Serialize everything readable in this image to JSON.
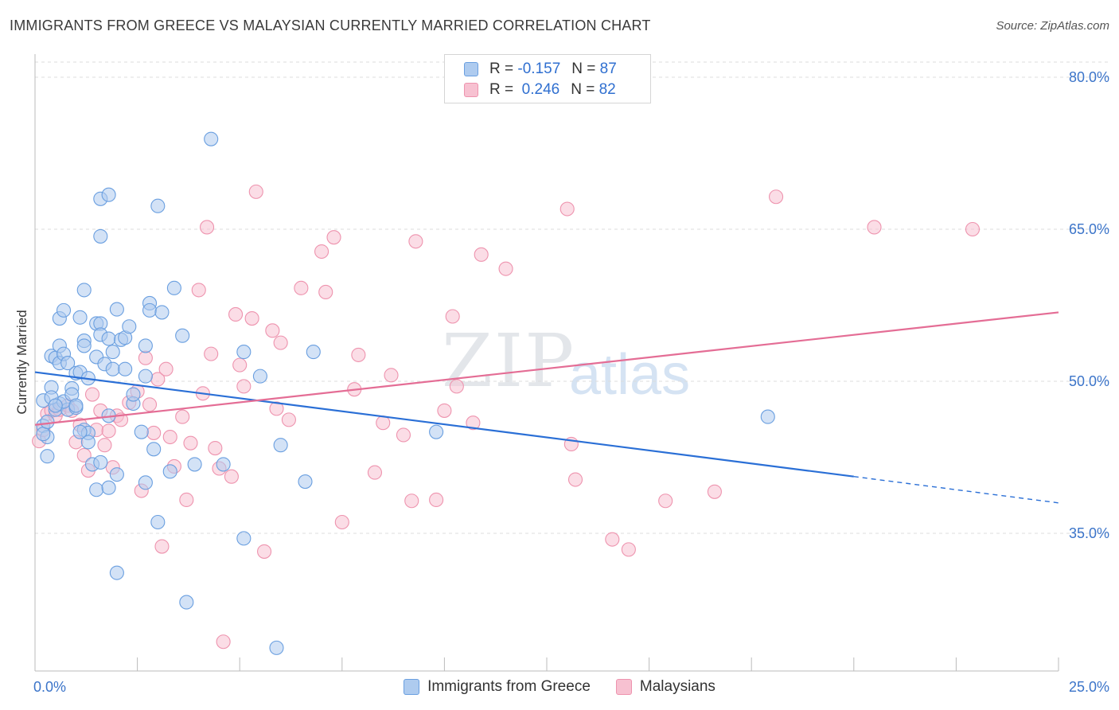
{
  "title": "IMMIGRANTS FROM GREECE VS MALAYSIAN CURRENTLY MARRIED CORRELATION CHART",
  "source": "Source: ZipAtlas.com",
  "watermark": {
    "zip": "ZIP",
    "atlas": "atlas"
  },
  "legend": {
    "rows": [
      {
        "r_label": "R =",
        "r_value": "-0.157",
        "n_label": "N =",
        "n_value": "87"
      },
      {
        "r_label": "R =",
        "r_value": "0.246",
        "n_label": "N =",
        "n_value": "82"
      }
    ]
  },
  "bottom_legend": {
    "greece": "Immigrants from Greece",
    "malaysians": "Malaysians"
  },
  "y_axis": {
    "label": "Currently Married",
    "ticks": [
      "80.0%",
      "65.0%",
      "50.0%",
      "35.0%"
    ]
  },
  "x_axis": {
    "ticks": [
      "0.0%",
      "25.0%"
    ]
  },
  "colors": {
    "greece_fill": "#aecbef",
    "greece_stroke": "#6a9fe0",
    "greece_line": "#2a6fd6",
    "malay_fill": "#f7c1d1",
    "malay_stroke": "#ee93ae",
    "malay_line": "#e46d95",
    "grid": "#dcdcdc",
    "tick_text": "#3b74c9"
  },
  "chart_data": {
    "type": "scatter",
    "xlim": [
      0,
      25
    ],
    "ylim": [
      22,
      83
    ],
    "grid": true,
    "legend_placement": "top-center",
    "series": [
      {
        "name": "Immigrants from Greece",
        "trend": {
          "x0": 0,
          "y0": 50.9,
          "x1": 20,
          "y1": 40.6,
          "dashed_to_x": 25,
          "dashed_to_y": 38.0
        },
        "points": [
          [
            0.2,
            45.6
          ],
          [
            0.3,
            44.5
          ],
          [
            0.2,
            48.1
          ],
          [
            0.4,
            49.4
          ],
          [
            0.3,
            42.6
          ],
          [
            0.5,
            47.2
          ],
          [
            0.4,
            52.5
          ],
          [
            0.5,
            52.3
          ],
          [
            0.6,
            51.8
          ],
          [
            0.6,
            53.5
          ],
          [
            0.7,
            52.7
          ],
          [
            0.6,
            47.8
          ],
          [
            0.8,
            47.2
          ],
          [
            0.7,
            48.0
          ],
          [
            0.9,
            49.3
          ],
          [
            0.8,
            51.8
          ],
          [
            0.9,
            48.7
          ],
          [
            1.0,
            50.8
          ],
          [
            1.0,
            47.4
          ],
          [
            1.1,
            50.9
          ],
          [
            1.2,
            54.0
          ],
          [
            1.2,
            53.5
          ],
          [
            1.1,
            56.3
          ],
          [
            0.6,
            56.2
          ],
          [
            0.7,
            57.0
          ],
          [
            1.2,
            45.2
          ],
          [
            1.3,
            44.9
          ],
          [
            1.3,
            44.0
          ],
          [
            1.4,
            41.8
          ],
          [
            1.2,
            59.0
          ],
          [
            1.3,
            50.3
          ],
          [
            1.5,
            55.7
          ],
          [
            1.5,
            52.4
          ],
          [
            1.6,
            55.7
          ],
          [
            1.6,
            54.6
          ],
          [
            1.6,
            42.0
          ],
          [
            1.5,
            39.3
          ],
          [
            1.7,
            51.7
          ],
          [
            1.8,
            54.2
          ],
          [
            1.8,
            46.6
          ],
          [
            1.8,
            39.5
          ],
          [
            1.9,
            52.9
          ],
          [
            1.9,
            51.2
          ],
          [
            2.0,
            57.1
          ],
          [
            2.0,
            40.8
          ],
          [
            2.1,
            54.1
          ],
          [
            2.2,
            54.3
          ],
          [
            2.2,
            51.2
          ],
          [
            2.3,
            55.4
          ],
          [
            2.4,
            47.8
          ],
          [
            2.4,
            48.7
          ],
          [
            2.6,
            45.0
          ],
          [
            2.7,
            53.5
          ],
          [
            2.7,
            50.5
          ],
          [
            2.7,
            40.0
          ],
          [
            2.8,
            57.7
          ],
          [
            2.8,
            57.0
          ],
          [
            2.9,
            43.3
          ],
          [
            3.0,
            36.1
          ],
          [
            3.1,
            56.8
          ],
          [
            3.3,
            41.1
          ],
          [
            3.4,
            59.2
          ],
          [
            3.6,
            54.5
          ],
          [
            3.7,
            28.2
          ],
          [
            3.9,
            41.8
          ],
          [
            1.6,
            68.0
          ],
          [
            1.8,
            68.4
          ],
          [
            1.6,
            64.3
          ],
          [
            3.0,
            67.3
          ],
          [
            4.3,
            73.9
          ],
          [
            4.6,
            41.8
          ],
          [
            5.1,
            52.9
          ],
          [
            5.1,
            34.5
          ],
          [
            5.5,
            50.5
          ],
          [
            6.0,
            43.7
          ],
          [
            6.6,
            40.1
          ],
          [
            6.8,
            52.9
          ],
          [
            5.9,
            23.7
          ],
          [
            9.8,
            45.0
          ],
          [
            17.9,
            46.5
          ],
          [
            0.2,
            44.8
          ],
          [
            0.3,
            46.0
          ],
          [
            0.4,
            48.4
          ],
          [
            0.5,
            47.6
          ],
          [
            2.0,
            31.1
          ],
          [
            1.0,
            47.6
          ],
          [
            1.1,
            45.0
          ]
        ]
      },
      {
        "name": "Malaysians",
        "trend": {
          "x0": 0,
          "y0": 45.7,
          "x1": 25,
          "y1": 56.8
        },
        "points": [
          [
            0.1,
            44.1
          ],
          [
            0.2,
            45.2
          ],
          [
            0.3,
            46.8
          ],
          [
            0.4,
            47.1
          ],
          [
            0.5,
            46.6
          ],
          [
            0.6,
            47.2
          ],
          [
            0.8,
            47.6
          ],
          [
            0.9,
            47.1
          ],
          [
            1.0,
            44.0
          ],
          [
            1.1,
            45.7
          ],
          [
            1.2,
            42.7
          ],
          [
            1.3,
            41.2
          ],
          [
            1.4,
            48.7
          ],
          [
            1.5,
            45.2
          ],
          [
            1.6,
            47.1
          ],
          [
            1.7,
            43.7
          ],
          [
            1.8,
            45.1
          ],
          [
            1.9,
            41.5
          ],
          [
            2.0,
            46.6
          ],
          [
            2.1,
            46.2
          ],
          [
            2.3,
            47.9
          ],
          [
            2.5,
            49.0
          ],
          [
            2.6,
            39.2
          ],
          [
            2.7,
            52.3
          ],
          [
            2.8,
            47.7
          ],
          [
            2.9,
            44.9
          ],
          [
            3.0,
            50.2
          ],
          [
            3.1,
            33.7
          ],
          [
            3.2,
            51.2
          ],
          [
            3.3,
            44.5
          ],
          [
            3.4,
            41.6
          ],
          [
            3.6,
            46.5
          ],
          [
            3.7,
            38.3
          ],
          [
            3.8,
            43.9
          ],
          [
            4.0,
            59.0
          ],
          [
            4.1,
            48.8
          ],
          [
            4.2,
            65.2
          ],
          [
            4.3,
            52.7
          ],
          [
            4.4,
            43.4
          ],
          [
            4.5,
            41.4
          ],
          [
            4.6,
            24.3
          ],
          [
            4.8,
            40.6
          ],
          [
            4.9,
            56.6
          ],
          [
            5.0,
            51.6
          ],
          [
            5.1,
            49.5
          ],
          [
            5.3,
            56.2
          ],
          [
            5.4,
            68.7
          ],
          [
            5.6,
            33.2
          ],
          [
            5.8,
            55.0
          ],
          [
            5.9,
            47.3
          ],
          [
            6.0,
            53.8
          ],
          [
            6.2,
            46.2
          ],
          [
            6.5,
            59.2
          ],
          [
            7.0,
            62.8
          ],
          [
            7.1,
            58.8
          ],
          [
            7.3,
            64.2
          ],
          [
            7.5,
            36.1
          ],
          [
            7.8,
            49.2
          ],
          [
            7.9,
            52.6
          ],
          [
            8.3,
            41.0
          ],
          [
            8.5,
            45.9
          ],
          [
            8.7,
            50.6
          ],
          [
            9.0,
            44.7
          ],
          [
            9.2,
            38.2
          ],
          [
            9.3,
            63.8
          ],
          [
            9.8,
            38.3
          ],
          [
            10.0,
            47.1
          ],
          [
            10.2,
            56.4
          ],
          [
            10.3,
            49.5
          ],
          [
            10.7,
            45.9
          ],
          [
            10.9,
            62.5
          ],
          [
            11.5,
            61.1
          ],
          [
            13.0,
            67.0
          ],
          [
            13.1,
            43.8
          ],
          [
            13.2,
            40.3
          ],
          [
            14.1,
            34.4
          ],
          [
            14.5,
            33.4
          ],
          [
            15.4,
            38.2
          ],
          [
            16.6,
            39.1
          ],
          [
            18.1,
            68.2
          ],
          [
            20.5,
            65.2
          ],
          [
            22.9,
            65.0
          ]
        ]
      }
    ]
  }
}
